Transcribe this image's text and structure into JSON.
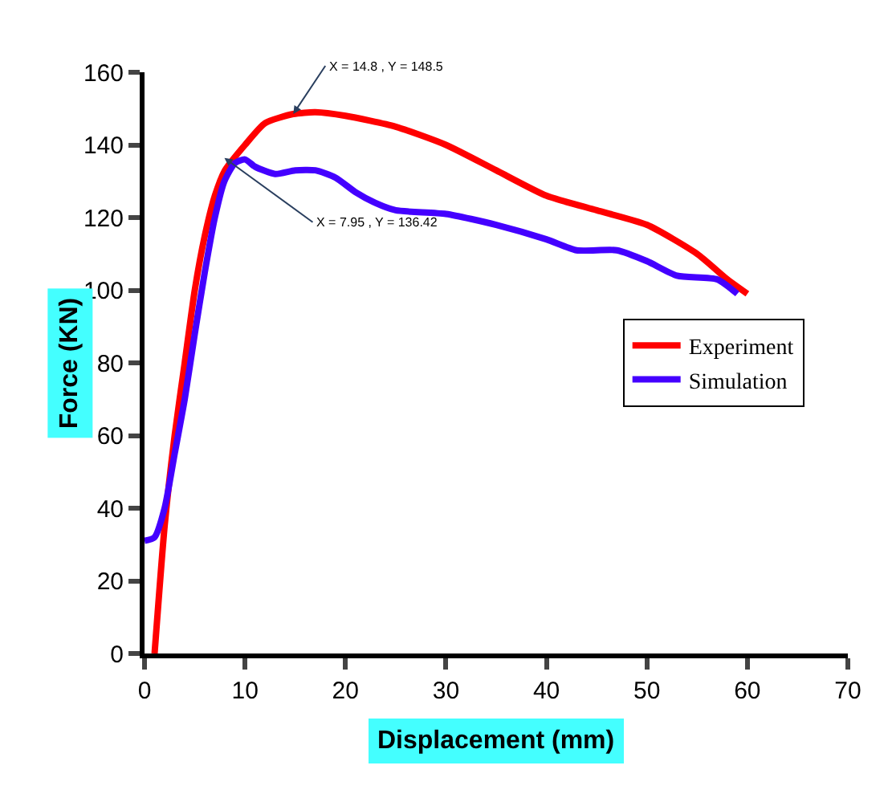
{
  "chart_data": {
    "type": "line",
    "xlabel": "Displacement (mm)",
    "ylabel": "Force (KN)",
    "xlim": [
      0,
      70
    ],
    "xticks": [
      0,
      10,
      20,
      30,
      40,
      50,
      60,
      70
    ],
    "ylim": [
      0,
      160
    ],
    "yticks": [
      0,
      20,
      40,
      60,
      80,
      100,
      120,
      140,
      160
    ],
    "legend": "right",
    "line_style": "solid",
    "marker": "none",
    "series": [
      {
        "name": "Experiment",
        "color": "#ff0000",
        "x": [
          1,
          2,
          3,
          4,
          5,
          6,
          7,
          8,
          10,
          12,
          14.8,
          17,
          20,
          25,
          30,
          35,
          40,
          45,
          50,
          55,
          58,
          60
        ],
        "values": [
          0,
          35,
          60,
          80,
          100,
          115,
          126,
          133,
          140,
          146,
          148.5,
          149,
          148,
          145,
          140,
          133,
          126,
          122,
          118,
          110,
          103,
          99
        ]
      },
      {
        "name": "Simulation",
        "color": "#4400ff",
        "x": [
          0,
          1,
          2,
          3,
          4,
          5,
          6,
          7,
          7.95,
          9,
          10,
          11,
          13,
          15,
          17,
          19,
          21,
          23,
          25,
          30,
          35,
          40,
          43,
          47,
          50,
          53,
          57,
          59
        ],
        "values": [
          31,
          32,
          40,
          55,
          70,
          88,
          105,
          120,
          130,
          135,
          136,
          134,
          132,
          133,
          133,
          131,
          127,
          124,
          122,
          121,
          118,
          114,
          111,
          111,
          108,
          104,
          103,
          99
        ]
      }
    ],
    "annotations": [
      {
        "text": "X = 14.8 , Y = 148.5",
        "x": 14.8,
        "y": 148.5
      },
      {
        "text": "X = 7.95 , Y = 136.42",
        "x": 7.95,
        "y": 136.42
      }
    ]
  }
}
